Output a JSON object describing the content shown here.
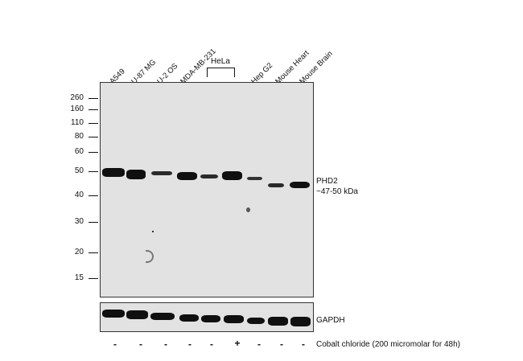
{
  "lanes": [
    "A549",
    "U-87 MG",
    "U-2 OS",
    "MDA-MB-231",
    "",
    "",
    "Hep G2",
    "Mouse Heart",
    "Mouse Brain"
  ],
  "group_label": "HeLa",
  "mw_markers": [
    "260",
    "160",
    "110",
    "80",
    "60",
    "50",
    "40",
    "30",
    "20",
    "15"
  ],
  "target_label": "PHD2",
  "target_size": "~47-50 kDa",
  "loading_control": "GAPDH",
  "treatments": [
    "-",
    "-",
    "-",
    "-",
    "-",
    "+",
    "-",
    "-",
    "-"
  ],
  "treatment_label": "Cobalt chloride (200 micromolar for 48h)"
}
